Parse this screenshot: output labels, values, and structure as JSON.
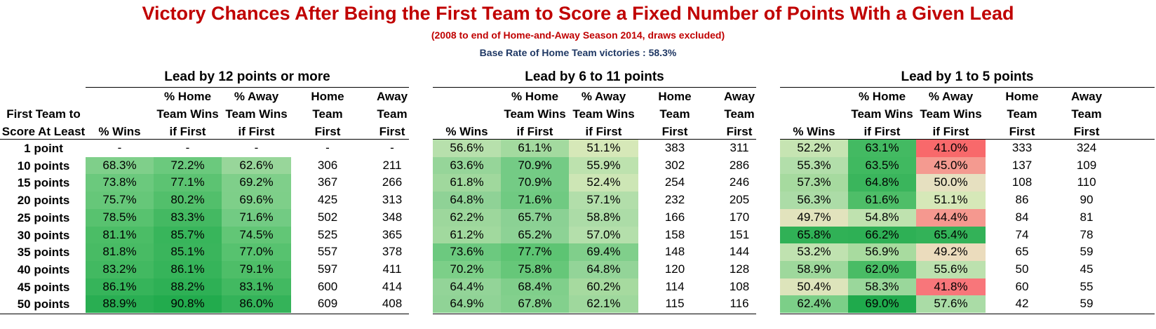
{
  "title": "Victory Chances After Being the First Team to Score a Fixed Number of Points With a Given Lead",
  "subtitle": "(2008 to end of Home-and-Away Season 2014, draws excluded)",
  "base_rate": "Base Rate of Home Team victories : 58.3%",
  "row_header": [
    "First Team to",
    "Score At Least"
  ],
  "row_labels": [
    "1 point",
    "10 points",
    "15 points",
    "20 points",
    "25 points",
    "30 points",
    "35 points",
    "40 points",
    "45 points",
    "50 points"
  ],
  "column_headers": [
    [
      "",
      "",
      "% Wins"
    ],
    [
      "% Home",
      "Team Wins",
      "if First"
    ],
    [
      "% Away",
      "Team Wins",
      "if First"
    ],
    [
      "Home",
      "Team",
      "First"
    ],
    [
      "Away",
      "Team",
      "First"
    ]
  ],
  "sections": [
    {
      "title": "Lead by 12 points or more",
      "rows": [
        [
          "-",
          "-",
          "-",
          "-",
          "-"
        ],
        [
          "68.3%",
          "72.2%",
          "62.6%",
          "306",
          "211"
        ],
        [
          "73.8%",
          "77.1%",
          "69.2%",
          "367",
          "266"
        ],
        [
          "75.7%",
          "80.2%",
          "69.6%",
          "425",
          "313"
        ],
        [
          "78.5%",
          "83.3%",
          "71.6%",
          "502",
          "348"
        ],
        [
          "81.1%",
          "85.7%",
          "74.5%",
          "525",
          "365"
        ],
        [
          "81.8%",
          "85.1%",
          "77.0%",
          "557",
          "378"
        ],
        [
          "83.2%",
          "86.1%",
          "79.1%",
          "597",
          "411"
        ],
        [
          "86.1%",
          "88.2%",
          "83.1%",
          "600",
          "414"
        ],
        [
          "88.9%",
          "90.8%",
          "86.0%",
          "609",
          "408"
        ]
      ],
      "colors": [
        [
          "#ffffff",
          "#ffffff",
          "#ffffff"
        ],
        [
          "#7fcf8a",
          "#6bc97d",
          "#98d69a"
        ],
        [
          "#6bc97d",
          "#5cc372",
          "#7fcf8a"
        ],
        [
          "#66c779",
          "#52bf6b",
          "#7ecf89"
        ],
        [
          "#58c26f",
          "#44b962",
          "#72cb83"
        ],
        [
          "#4bbd66",
          "#38b55b",
          "#62c676"
        ],
        [
          "#48bb64",
          "#3ab55c",
          "#57c26f"
        ],
        [
          "#42b961",
          "#36b45a",
          "#4ebe68"
        ],
        [
          "#36b45a",
          "#2eb055",
          "#42b961"
        ],
        [
          "#29ae52",
          "#22ab4d",
          "#34b359"
        ]
      ]
    },
    {
      "title": "Lead by 6 to 11 points",
      "rows": [
        [
          "56.6%",
          "61.1%",
          "51.1%",
          "383",
          "311"
        ],
        [
          "63.6%",
          "70.9%",
          "55.9%",
          "302",
          "286"
        ],
        [
          "61.8%",
          "70.9%",
          "52.4%",
          "254",
          "246"
        ],
        [
          "64.8%",
          "71.6%",
          "57.1%",
          "232",
          "205"
        ],
        [
          "62.2%",
          "65.7%",
          "58.8%",
          "166",
          "170"
        ],
        [
          "61.2%",
          "65.2%",
          "57.0%",
          "158",
          "151"
        ],
        [
          "73.6%",
          "77.7%",
          "69.4%",
          "148",
          "144"
        ],
        [
          "70.2%",
          "75.8%",
          "64.8%",
          "120",
          "128"
        ],
        [
          "64.4%",
          "68.4%",
          "60.2%",
          "114",
          "108"
        ],
        [
          "64.9%",
          "67.8%",
          "62.1%",
          "115",
          "116"
        ]
      ],
      "colors": [
        [
          "#b7e0ac",
          "#a3da9f",
          "#d6e8b8"
        ],
        [
          "#96d599",
          "#74cb85",
          "#bde2ae"
        ],
        [
          "#a0d89d",
          "#74cb85",
          "#cde6b5"
        ],
        [
          "#8fd296",
          "#70ca82",
          "#b2deaa"
        ],
        [
          "#9dd79c",
          "#8bd194",
          "#acdca7"
        ],
        [
          "#a1d99e",
          "#8dd295",
          "#b4dfab"
        ],
        [
          "#6cc97f",
          "#5dc473",
          "#80cf8b"
        ],
        [
          "#7ccf88",
          "#66c779",
          "#93d498"
        ],
        [
          "#93d498",
          "#80cf8b",
          "#a6da9f"
        ],
        [
          "#90d396",
          "#83d08d",
          "#9fd89d"
        ]
      ]
    },
    {
      "title": "Lead by 1 to 5 points",
      "rows": [
        [
          "52.2%",
          "63.1%",
          "41.0%",
          "333",
          "324"
        ],
        [
          "55.3%",
          "63.5%",
          "45.0%",
          "137",
          "109"
        ],
        [
          "57.3%",
          "64.8%",
          "50.0%",
          "108",
          "110"
        ],
        [
          "56.3%",
          "61.6%",
          "51.1%",
          "86",
          "90"
        ],
        [
          "49.7%",
          "54.8%",
          "44.4%",
          "84",
          "81"
        ],
        [
          "65.8%",
          "66.2%",
          "65.4%",
          "74",
          "78"
        ],
        [
          "53.2%",
          "56.9%",
          "49.2%",
          "65",
          "59"
        ],
        [
          "58.9%",
          "62.0%",
          "55.6%",
          "50",
          "45"
        ],
        [
          "50.4%",
          "58.3%",
          "41.8%",
          "60",
          "55"
        ],
        [
          "62.4%",
          "69.0%",
          "57.6%",
          "42",
          "59"
        ]
      ],
      "colors": [
        [
          "#c6e4b2",
          "#43ba62",
          "#f8696b"
        ],
        [
          "#b2deaa",
          "#40b960",
          "#f49a90"
        ],
        [
          "#a6da9f",
          "#3ab55c",
          "#e6e0c0"
        ],
        [
          "#acdca7",
          "#4ebe68",
          "#d6e8b8"
        ],
        [
          "#e2e3bd",
          "#bfe2af",
          "#f5988f"
        ],
        [
          "#30b156",
          "#2eb055",
          "#33b258"
        ],
        [
          "#c0e2b0",
          "#a8db9f",
          "#ebdcbd"
        ],
        [
          "#9ed89c",
          "#49bc65",
          "#bce1ae"
        ],
        [
          "#dde4bb",
          "#9ad79b",
          "#f8767a"
        ],
        [
          "#7ccf88",
          "#1faa4c",
          "#aadca6"
        ]
      ]
    }
  ]
}
